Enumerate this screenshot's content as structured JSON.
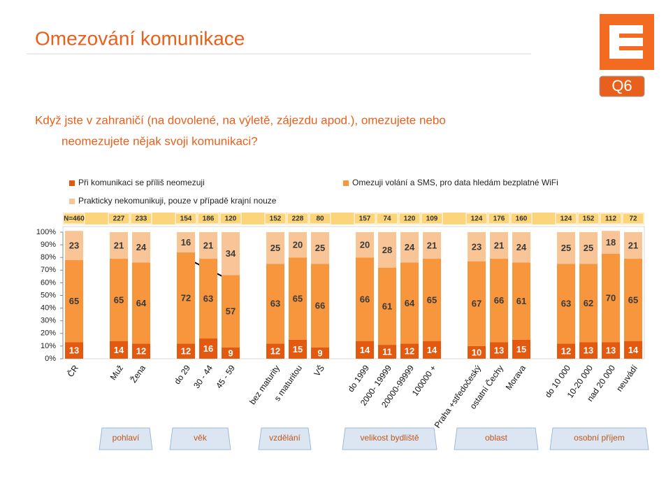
{
  "header": {
    "title": "Omezování komunikace",
    "badge": "Q6",
    "question_line1": "Když jste v zahraničí (na dovolené, na výletě, zájezdu apod.), omezujete nebo",
    "question_line2": "neomezujete nějak svoji komunikaci?"
  },
  "chart_data": {
    "type": "stacked-bar",
    "categories": [
      "ČR",
      null,
      "Muž",
      "Žena",
      null,
      "do 29",
      "30 - 44",
      "45 - 59",
      null,
      "bez maturity",
      "s maturitou",
      "VŠ",
      null,
      "do 1999",
      "2000- 19999",
      "20000-99999",
      "100000 +",
      null,
      "Praha +středočeský",
      "ostatní Čechy",
      "Morava",
      null,
      "do 10 000",
      "10-20 000",
      "nad 20 000",
      "neuvádí"
    ],
    "sample_sizes": [
      {
        "value": 460,
        "label": "N=460"
      },
      null,
      227,
      233,
      null,
      154,
      186,
      120,
      null,
      152,
      228,
      80,
      null,
      157,
      74,
      120,
      109,
      null,
      124,
      176,
      160,
      null,
      124,
      152,
      112,
      72
    ],
    "series": [
      {
        "name": "Při komunikaci se příliš neomezuji",
        "color": "#e2590f",
        "values": [
          13,
          null,
          14,
          12,
          null,
          12,
          16,
          9,
          null,
          12,
          15,
          9,
          null,
          14,
          11,
          12,
          14,
          null,
          10,
          13,
          15,
          null,
          12,
          13,
          13,
          14
        ]
      },
      {
        "name": "Omezuji volání a SMS, pro data hledám bezplatné WiFi",
        "color": "#f7963c",
        "values": [
          65,
          null,
          65,
          64,
          null,
          72,
          63,
          57,
          null,
          63,
          65,
          66,
          null,
          66,
          61,
          64,
          65,
          null,
          67,
          66,
          61,
          null,
          63,
          62,
          70,
          65
        ]
      },
      {
        "name": "Prakticky nekomunikuji, pouze v případě krajní nouze",
        "color": "#fac596",
        "values": [
          23,
          null,
          21,
          24,
          null,
          16,
          21,
          34,
          null,
          25,
          20,
          25,
          null,
          20,
          28,
          24,
          21,
          null,
          23,
          21,
          24,
          null,
          25,
          25,
          18,
          21
        ]
      }
    ],
    "ylim": [
      0,
      100
    ],
    "yticks": [
      {
        "value": 0,
        "label": "0%"
      },
      {
        "value": 10,
        "label": "10%"
      },
      {
        "value": 20,
        "label": "20%"
      },
      {
        "value": 30,
        "label": "30%"
      },
      {
        "value": 40,
        "label": "40%"
      },
      {
        "value": 50,
        "label": "50%"
      },
      {
        "value": 60,
        "label": "60%"
      },
      {
        "value": 70,
        "label": "70%"
      },
      {
        "value": 80,
        "label": "80%"
      },
      {
        "value": 90,
        "label": "90%"
      },
      {
        "value": 100,
        "label": "100%"
      }
    ],
    "grid": false,
    "groups": [
      "pohlaví",
      "věk",
      "vzdělání",
      "velikost bydliště",
      "oblast",
      "osobní příjem"
    ]
  }
}
